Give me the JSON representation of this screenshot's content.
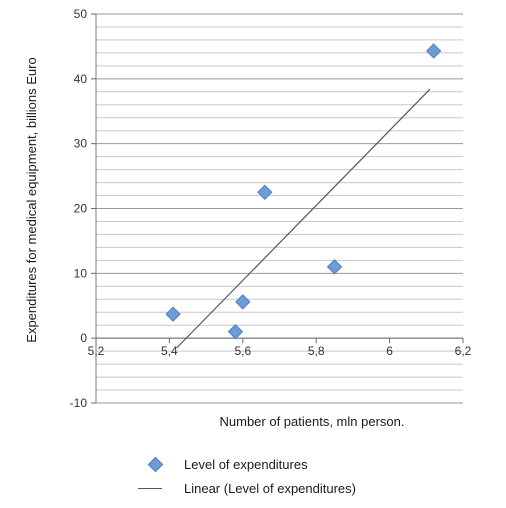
{
  "chart_data": {
    "type": "scatter",
    "xlabel": "Number of patients, mln person.",
    "ylabel": "Expenditures for medical equipment, billions Euro",
    "xlim": [
      5.2,
      6.2
    ],
    "ylim": [
      -10,
      50
    ],
    "x_ticks": [
      5.2,
      5.4,
      5.6,
      5.8,
      6,
      6.2
    ],
    "x_tick_labels": [
      "5,2",
      "5,4",
      "5,6",
      "5,8",
      "6",
      "6,2"
    ],
    "y_ticks": [
      -10,
      0,
      10,
      20,
      30,
      40,
      50
    ],
    "y_tick_labels": [
      "-10",
      "0",
      "10",
      "20",
      "30",
      "40",
      "50"
    ],
    "grid": "horizontal minor lines every 2",
    "legend_position": "bottom",
    "series": [
      {
        "name": "Level of expenditures",
        "marker": "diamond",
        "color": "#6f9bd6",
        "x": [
          5.41,
          5.58,
          5.6,
          5.66,
          5.85,
          6.12
        ],
        "y": [
          3.7,
          1.0,
          5.6,
          22.5,
          11.0,
          44.3
        ]
      }
    ],
    "trendline": {
      "name": "Linear (Level of expenditures)",
      "color": "#555555",
      "x": [
        5.42,
        6.11
      ],
      "y": [
        -1.5,
        38.4
      ]
    }
  }
}
